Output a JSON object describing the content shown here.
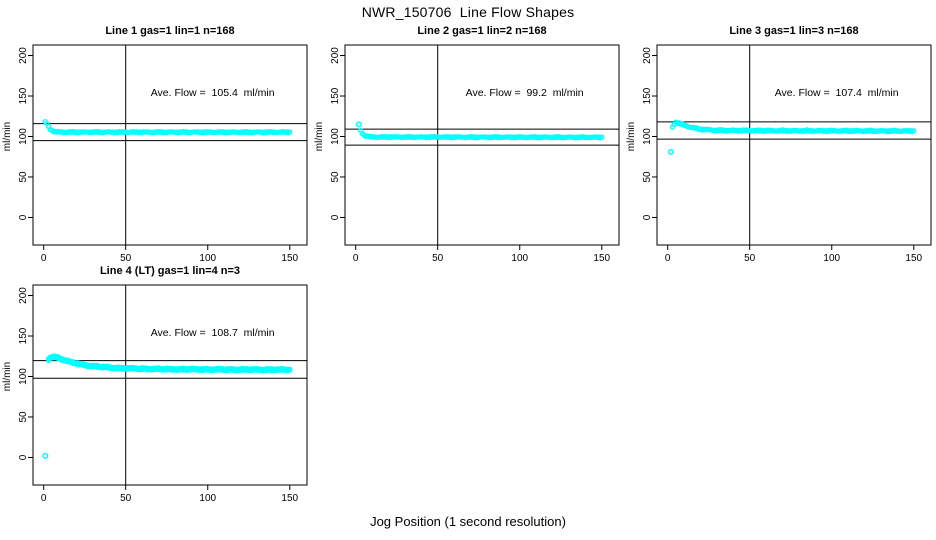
{
  "page": {
    "title": "NWR_150706  Line Flow Shapes",
    "xlabel": "Jog Position (1 second resolution)"
  },
  "colors": {
    "points": "#00ffff",
    "axis": "#000000",
    "background": "#ffffff"
  },
  "chart_data": [
    {
      "type": "scatter",
      "title": "Line 1 gas=1 lin=1 n=168",
      "ylabel": "ml/min",
      "ave_label": "Ave. Flow =  105.4  ml/min",
      "ave_flow_ml_min": 105.4,
      "n": 168,
      "x_ticks": [
        0,
        50,
        100,
        150
      ],
      "y_ticks": [
        0,
        50,
        100,
        150,
        200
      ],
      "xlim": [
        -6.5,
        160.5
      ],
      "ylim": [
        -34,
        213
      ],
      "ref_vline": 50,
      "ref_hlines": [
        94.9,
        115.9
      ],
      "point_color": "#00ffff",
      "n_points": 150,
      "passes": 1,
      "jitter": 0.8,
      "trend_keypoints": [
        [
          1,
          118
        ],
        [
          2,
          116
        ],
        [
          3,
          112
        ],
        [
          4,
          109
        ],
        [
          5,
          107.5
        ],
        [
          7,
          106
        ],
        [
          10,
          105.4
        ],
        [
          150,
          105.3
        ]
      ],
      "outliers": []
    },
    {
      "type": "scatter",
      "title": "Line 2 gas=1 lin=2 n=168",
      "ylabel": "ml/min",
      "ave_label": "Ave. Flow =  99.2  ml/min",
      "ave_flow_ml_min": 99.2,
      "n": 168,
      "x_ticks": [
        0,
        50,
        100,
        150
      ],
      "y_ticks": [
        0,
        50,
        100,
        150,
        200
      ],
      "xlim": [
        -6.5,
        160.5
      ],
      "ylim": [
        -34,
        213
      ],
      "ref_vline": 50,
      "ref_hlines": [
        89.3,
        109.1
      ],
      "point_color": "#00ffff",
      "n_points": 150,
      "passes": 1,
      "jitter": 0.8,
      "trend_keypoints": [
        [
          3,
          107
        ],
        [
          4,
          104
        ],
        [
          5,
          101.8
        ],
        [
          7,
          100.3
        ],
        [
          10,
          99.4
        ],
        [
          150,
          99
        ]
      ],
      "outliers": [
        [
          2,
          115
        ]
      ]
    },
    {
      "type": "scatter",
      "title": "Line 3 gas=1 lin=3 n=168",
      "ylabel": "ml/min",
      "ave_label": "Ave. Flow =  107.4  ml/min",
      "ave_flow_ml_min": 107.4,
      "n": 168,
      "x_ticks": [
        0,
        50,
        100,
        150
      ],
      "y_ticks": [
        0,
        50,
        100,
        150,
        200
      ],
      "xlim": [
        -6.5,
        160.5
      ],
      "ylim": [
        -34,
        213
      ],
      "ref_vline": 50,
      "ref_hlines": [
        96.7,
        118.1
      ],
      "point_color": "#00ffff",
      "n_points": 150,
      "passes": 1,
      "jitter": 1.0,
      "trend_keypoints": [
        [
          3,
          111
        ],
        [
          4,
          115.5
        ],
        [
          5,
          117.5
        ],
        [
          7,
          116.5
        ],
        [
          10,
          114
        ],
        [
          14,
          111.5
        ],
        [
          20,
          109
        ],
        [
          30,
          107.6
        ],
        [
          60,
          107.2
        ],
        [
          150,
          106.8
        ]
      ],
      "outliers": [
        [
          2,
          81
        ]
      ]
    },
    {
      "type": "scatter",
      "title": "Line 4 (LT) gas=1 lin=4 n=3",
      "ylabel": "ml/min",
      "ave_label": "Ave. Flow =  108.7  ml/min",
      "ave_flow_ml_min": 108.7,
      "n": 3,
      "x_ticks": [
        0,
        50,
        100,
        150
      ],
      "y_ticks": [
        0,
        50,
        100,
        150,
        200
      ],
      "xlim": [
        -6.5,
        160.5
      ],
      "ylim": [
        -34,
        213
      ],
      "ref_vline": 50,
      "ref_hlines": [
        97.8,
        119.6
      ],
      "point_color": "#00ffff",
      "n_points": 150,
      "passes": 3,
      "jitter": 1.4,
      "trend_keypoints": [
        [
          3,
          121
        ],
        [
          4,
          123.5
        ],
        [
          6,
          124.5
        ],
        [
          9,
          123
        ],
        [
          13,
          120
        ],
        [
          17,
          117.5
        ],
        [
          22,
          115.3
        ],
        [
          28,
          113.3
        ],
        [
          35,
          111.8
        ],
        [
          45,
          110.5
        ],
        [
          55,
          109.8
        ],
        [
          75,
          109
        ],
        [
          110,
          108.6
        ],
        [
          150,
          108.4
        ]
      ],
      "outliers": [
        [
          1,
          2
        ]
      ]
    }
  ]
}
